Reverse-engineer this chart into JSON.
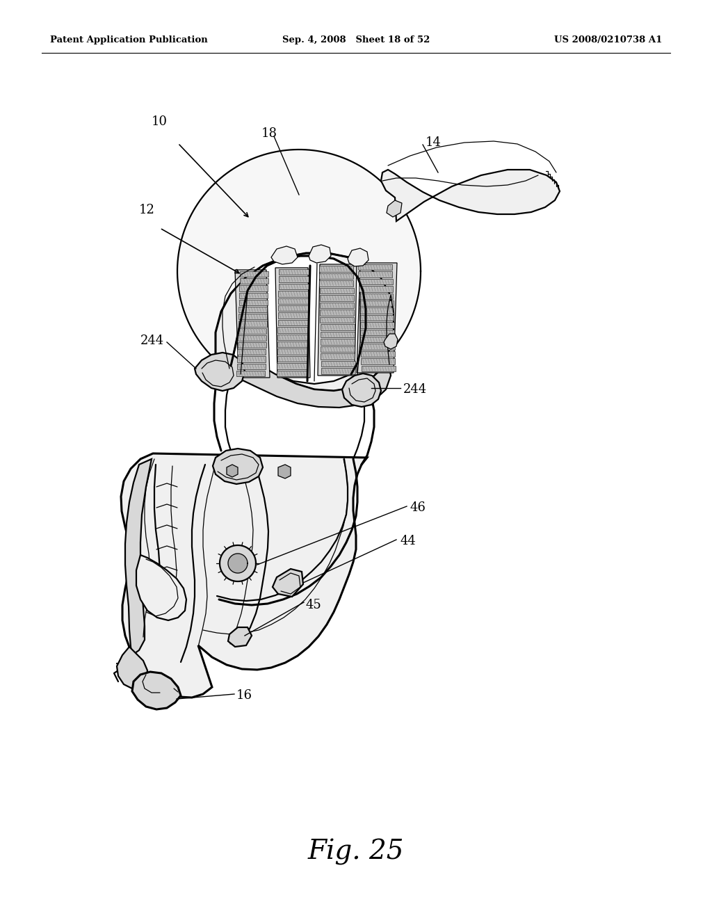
{
  "bg_color": "#ffffff",
  "line_color": "#000000",
  "header_left": "Patent Application Publication",
  "header_center": "Sep. 4, 2008   Sheet 18 of 52",
  "header_right": "US 2008/0210738 A1",
  "figure_label": "Fig. 25",
  "lw_main": 1.6,
  "lw_thin": 0.9,
  "lw_thick": 2.2,
  "gray_light": "#f0f0f0",
  "gray_mid": "#d8d8d8",
  "gray_dark": "#b0b0b0",
  "white": "#ffffff"
}
